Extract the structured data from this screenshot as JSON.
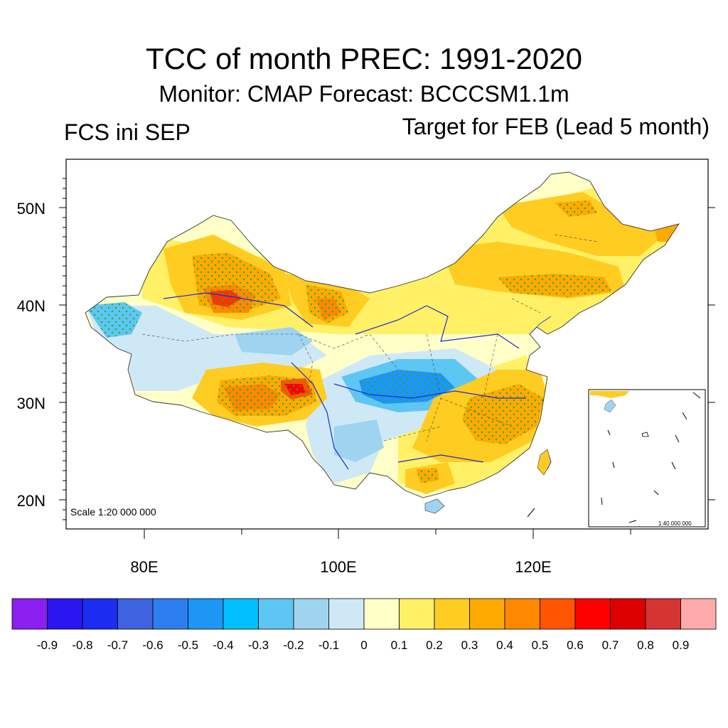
{
  "title": "TCC of month PREC: 1991-2020",
  "subtitle": "Monitor: CMAP   Forecast: BCCCSM1.1m",
  "left_label": "FCS ini SEP",
  "right_label": "Target for FEB (Lead 5 month)",
  "lat_labels": [
    "50N",
    "40N",
    "30N",
    "20N"
  ],
  "lon_labels": [
    "80E",
    "100E",
    "120E"
  ],
  "scale_text": "Scale 1:20 000 000",
  "inset_scale_text": "1:40 000 000",
  "colorbar": {
    "labels": [
      "-0.9",
      "-0.8",
      "-0.7",
      "-0.6",
      "-0.5",
      "-0.4",
      "-0.3",
      "-0.2",
      "-0.1",
      "0",
      "0.1",
      "0.2",
      "0.3",
      "0.4",
      "0.5",
      "0.6",
      "0.7",
      "0.8",
      "0.9"
    ],
    "colors": [
      "#8a1ff0",
      "#2a16f0",
      "#1c2cf0",
      "#3f62e0",
      "#2d7ff0",
      "#1e96f5",
      "#00bfff",
      "#5ec6f2",
      "#9fd4f0",
      "#cfe8f6",
      "#ffffc8",
      "#fff066",
      "#ffcc22",
      "#ffaa00",
      "#ff8800",
      "#ff5500",
      "#ff0000",
      "#dd0000",
      "#d63333",
      "#ffaaaa"
    ]
  }
}
